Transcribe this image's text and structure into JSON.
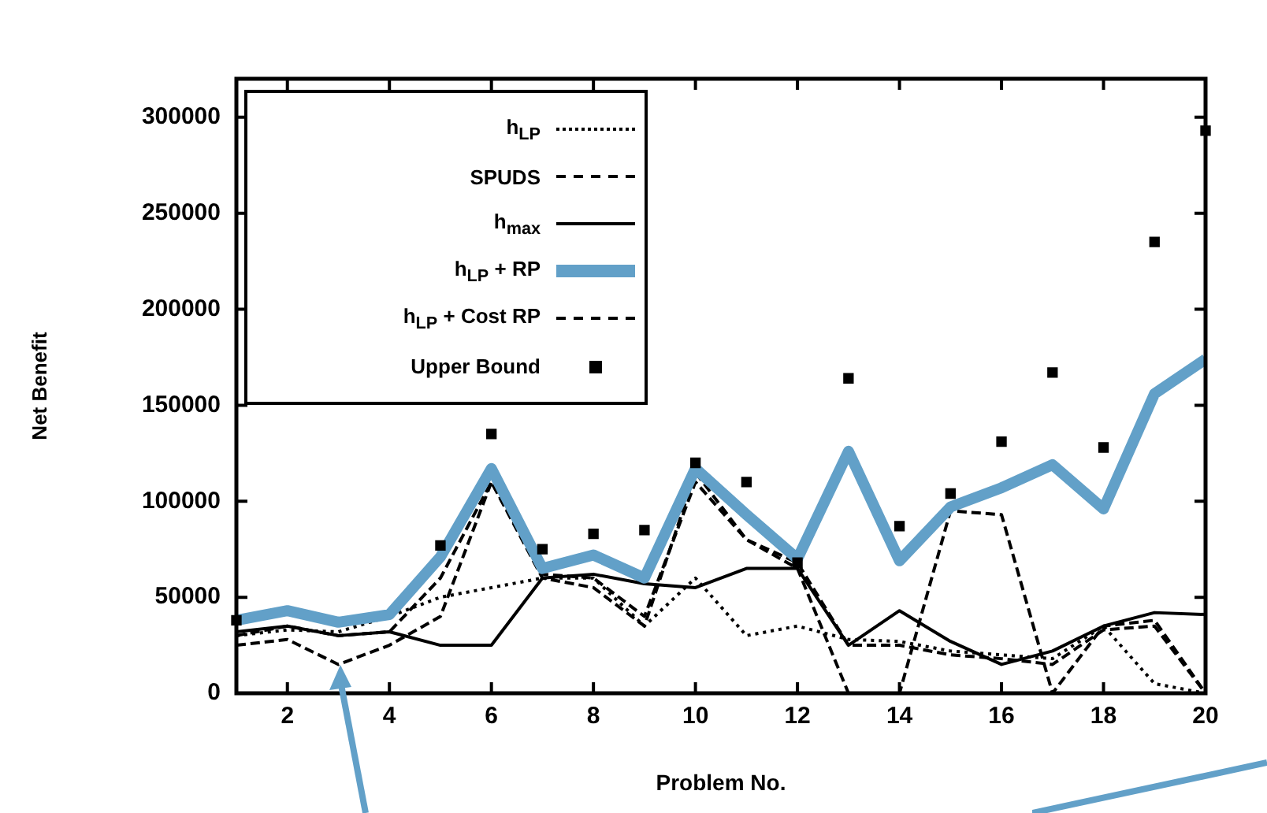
{
  "chart_data": {
    "type": "line",
    "xlabel": "Problem No.",
    "ylabel": "Net Benefit",
    "x": [
      1,
      2,
      3,
      4,
      5,
      6,
      7,
      8,
      9,
      10,
      11,
      12,
      13,
      14,
      15,
      16,
      17,
      18,
      19,
      20
    ],
    "xlim": [
      1,
      20
    ],
    "xticks": [
      2,
      4,
      6,
      8,
      10,
      12,
      14,
      16,
      18,
      20
    ],
    "ylim": [
      0,
      320000
    ],
    "yticks": [
      0,
      50000,
      100000,
      150000,
      200000,
      250000,
      300000
    ],
    "grid": false,
    "legend": "top left",
    "marker": "none",
    "series": [
      {
        "name": "h$_{LP}$",
        "color": "#000000",
        "line_style": "dotted",
        "values": [
          30000,
          33000,
          32000,
          40000,
          50000,
          55000,
          60000,
          60000,
          35000,
          60000,
          30000,
          35000,
          28000,
          27000,
          22000,
          20000,
          18000,
          35000,
          5000,
          0
        ]
      },
      {
        "name": "SPUDS",
        "color": "#000000",
        "line_style": "dashed",
        "values": [
          25000,
          28000,
          15000,
          25000,
          40000,
          110000,
          60000,
          55000,
          35000,
          115000,
          80000,
          65000,
          0,
          0,
          95000,
          93000,
          0,
          35000,
          38000,
          0
        ]
      },
      {
        "name": "h$_{max}$",
        "color": "#000000",
        "line_style": "solid",
        "values": [
          32000,
          35000,
          30000,
          32000,
          25000,
          25000,
          60000,
          62000,
          57000,
          55000,
          65000,
          65000,
          25000,
          43000,
          27000,
          15000,
          22000,
          35000,
          42000,
          41000
        ]
      },
      {
        "name": "h$_{LP}$ + RP",
        "color": "#62a0c8",
        "line_style": "solid",
        "values": [
          38000,
          43000,
          37000,
          41000,
          71000,
          117000,
          65000,
          72000,
          60000,
          117000,
          93000,
          70000,
          126000,
          69000,
          97000,
          107000,
          119000,
          96000,
          156000,
          174000
        ]
      },
      {
        "name": "h$_{LP}$ + Cost RP",
        "color": "#000000",
        "line_style": "dashed",
        "values": [
          30000,
          35000,
          30000,
          32000,
          60000,
          110000,
          62000,
          60000,
          40000,
          110000,
          80000,
          68000,
          25000,
          25000,
          20000,
          18000,
          15000,
          33000,
          35000,
          0
        ]
      },
      {
        "name": "Upper Bound",
        "type": "scatter",
        "marker": "square",
        "color": "#000000",
        "values": [
          38000,
          null,
          null,
          null,
          77000,
          135000,
          75000,
          83000,
          85000,
          120000,
          110000,
          68000,
          164000,
          87000,
          104000,
          131000,
          167000,
          128000,
          235000,
          293000
        ]
      }
    ]
  }
}
